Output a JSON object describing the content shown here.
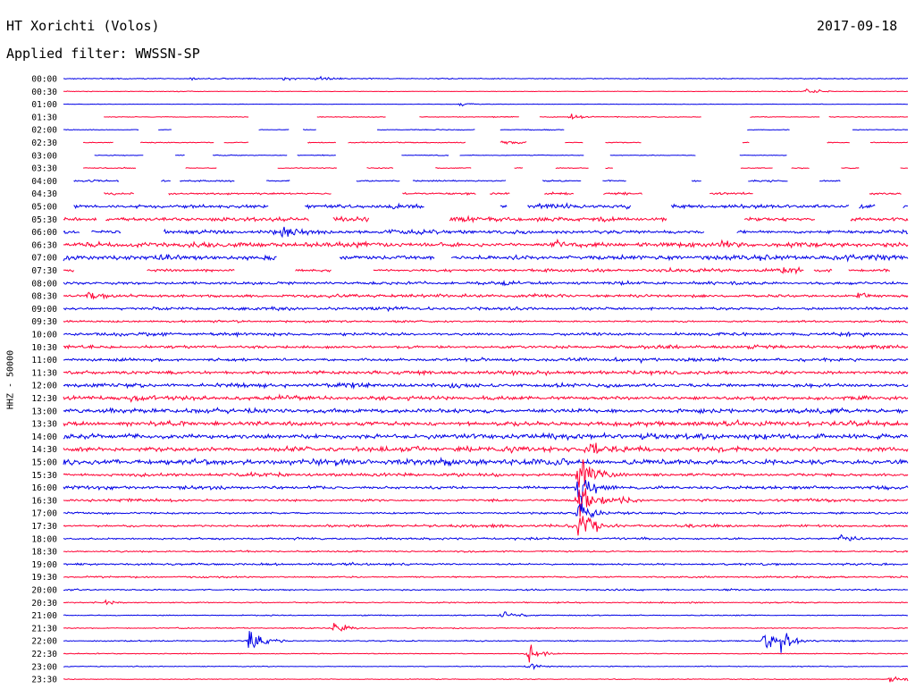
{
  "header": {
    "station": "HT Xorichti (Volos)",
    "date": "2017-09-18",
    "filter": "Applied filter: WWSSN-SP"
  },
  "chart_data": {
    "type": "line",
    "title": "HT Xorichti (Volos)",
    "subtitle": "Applied filter: WWSSN-SP",
    "ylabel": "HHZ - 50000",
    "xlabel": "",
    "grid": false,
    "colors": [
      "#0000e6",
      "#ff0033"
    ],
    "rows": [
      {
        "label": "00:00",
        "noise": 1.0,
        "gaps": 0,
        "bursts": [
          [
            0.15,
            3
          ],
          [
            0.26,
            3
          ],
          [
            0.3,
            4
          ]
        ]
      },
      {
        "label": "00:30",
        "noise": 0.6,
        "gaps": 0,
        "bursts": [
          [
            0.88,
            7
          ]
        ]
      },
      {
        "label": "01:00",
        "noise": 0.4,
        "gaps": 0,
        "bursts": [
          [
            0.47,
            5
          ]
        ]
      },
      {
        "label": "01:30",
        "noise": 0.8,
        "gaps": 0.25,
        "bursts": [
          [
            0.6,
            6
          ]
        ]
      },
      {
        "label": "02:00",
        "noise": 0.8,
        "gaps": 0.45,
        "bursts": []
      },
      {
        "label": "02:30",
        "noise": 1.0,
        "gaps": 0.45,
        "bursts": [
          [
            0.52,
            6
          ]
        ]
      },
      {
        "label": "03:00",
        "noise": 0.8,
        "gaps": 0.45,
        "bursts": []
      },
      {
        "label": "03:30",
        "noise": 1.0,
        "gaps": 0.55,
        "bursts": []
      },
      {
        "label": "04:00",
        "noise": 1.6,
        "gaps": 0.5,
        "bursts": [
          [
            0.99,
            8
          ]
        ]
      },
      {
        "label": "04:30",
        "noise": 2.0,
        "gaps": 0.5,
        "bursts": [
          [
            0.55,
            4
          ]
        ]
      },
      {
        "label": "05:00",
        "noise": 4.0,
        "gaps": 0.35,
        "bursts": []
      },
      {
        "label": "05:30",
        "noise": 4.0,
        "gaps": 0.3,
        "bursts": []
      },
      {
        "label": "06:00",
        "noise": 3.5,
        "gaps": 0.15,
        "bursts": [
          [
            0.26,
            14
          ]
        ]
      },
      {
        "label": "06:30",
        "noise": 4.5,
        "gaps": 0,
        "bursts": [
          [
            0.58,
            9
          ],
          [
            0.78,
            9
          ]
        ]
      },
      {
        "label": "07:00",
        "noise": 4.5,
        "gaps": 0.1,
        "bursts": []
      },
      {
        "label": "07:30",
        "noise": 3.0,
        "gaps": 0.2,
        "bursts": [
          [
            0.85,
            12
          ]
        ]
      },
      {
        "label": "08:00",
        "noise": 3.0,
        "gaps": 0,
        "bursts": []
      },
      {
        "label": "08:30",
        "noise": 3.0,
        "gaps": 0,
        "bursts": [
          [
            0.03,
            9
          ],
          [
            0.94,
            8
          ]
        ]
      },
      {
        "label": "09:00",
        "noise": 3.0,
        "gaps": 0,
        "bursts": []
      },
      {
        "label": "09:30",
        "noise": 2.0,
        "gaps": 0,
        "bursts": []
      },
      {
        "label": "10:00",
        "noise": 3.0,
        "gaps": 0,
        "bursts": []
      },
      {
        "label": "10:30",
        "noise": 3.0,
        "gaps": 0,
        "bursts": []
      },
      {
        "label": "11:00",
        "noise": 3.0,
        "gaps": 0,
        "bursts": [
          [
            0.68,
            6
          ]
        ]
      },
      {
        "label": "11:30",
        "noise": 3.5,
        "gaps": 0,
        "bursts": []
      },
      {
        "label": "12:00",
        "noise": 4.0,
        "gaps": 0,
        "bursts": []
      },
      {
        "label": "12:30",
        "noise": 4.0,
        "gaps": 0,
        "bursts": [
          [
            0.08,
            9
          ]
        ]
      },
      {
        "label": "13:00",
        "noise": 4.5,
        "gaps": 0,
        "bursts": []
      },
      {
        "label": "13:30",
        "noise": 4.5,
        "gaps": 0,
        "bursts": []
      },
      {
        "label": "14:00",
        "noise": 5.0,
        "gaps": 0,
        "bursts": []
      },
      {
        "label": "14:30",
        "noise": 5.0,
        "gaps": 0,
        "bursts": [
          [
            0.62,
            14
          ]
        ]
      },
      {
        "label": "15:00",
        "noise": 5.5,
        "gaps": 0,
        "bursts": [
          [
            0.0,
            9
          ]
        ]
      },
      {
        "label": "15:30",
        "noise": 3.0,
        "gaps": 0,
        "bursts": [
          [
            0.61,
            40
          ]
        ]
      },
      {
        "label": "16:00",
        "noise": 3.0,
        "gaps": 0,
        "bursts": [
          [
            0.61,
            34
          ]
        ]
      },
      {
        "label": "16:30",
        "noise": 2.5,
        "gaps": 0,
        "bursts": [
          [
            0.61,
            34
          ],
          [
            0.66,
            8
          ]
        ]
      },
      {
        "label": "17:00",
        "noise": 2.0,
        "gaps": 0,
        "bursts": [
          [
            0.61,
            20
          ]
        ]
      },
      {
        "label": "17:30",
        "noise": 2.5,
        "gaps": 0,
        "bursts": [
          [
            0.61,
            30
          ]
        ]
      },
      {
        "label": "18:00",
        "noise": 2.0,
        "gaps": 0,
        "bursts": [
          [
            0.92,
            9
          ]
        ]
      },
      {
        "label": "18:30",
        "noise": 1.5,
        "gaps": 0,
        "bursts": []
      },
      {
        "label": "19:00",
        "noise": 2.0,
        "gaps": 0,
        "bursts": [
          [
            0.33,
            4
          ]
        ]
      },
      {
        "label": "19:30",
        "noise": 1.5,
        "gaps": 0,
        "bursts": []
      },
      {
        "label": "20:00",
        "noise": 1.5,
        "gaps": 0,
        "bursts": []
      },
      {
        "label": "20:30",
        "noise": 1.2,
        "gaps": 0,
        "bursts": [
          [
            0.05,
            4
          ]
        ]
      },
      {
        "label": "21:00",
        "noise": 1.0,
        "gaps": 0,
        "bursts": [
          [
            0.52,
            8
          ]
        ]
      },
      {
        "label": "21:30",
        "noise": 1.0,
        "gaps": 0,
        "bursts": [
          [
            0.32,
            11
          ]
        ]
      },
      {
        "label": "22:00",
        "noise": 1.2,
        "gaps": 0,
        "bursts": [
          [
            0.22,
            18
          ],
          [
            0.83,
            14
          ],
          [
            0.85,
            16
          ]
        ]
      },
      {
        "label": "22:30",
        "noise": 0.8,
        "gaps": 0,
        "bursts": [
          [
            0.55,
            14
          ]
        ]
      },
      {
        "label": "23:00",
        "noise": 0.8,
        "gaps": 0,
        "bursts": [
          [
            0.55,
            7
          ]
        ]
      },
      {
        "label": "23:30",
        "noise": 0.8,
        "gaps": 0,
        "bursts": [
          [
            0.98,
            12
          ]
        ]
      }
    ]
  }
}
